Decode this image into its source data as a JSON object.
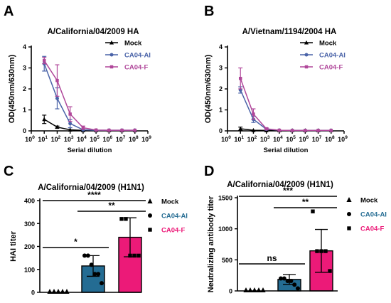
{
  "chart_data": [
    {
      "id": "A",
      "panel_label": "A",
      "type": "line",
      "title": "A/California/04/2009 HA",
      "xlabel": "Serial dilution",
      "ylabel": "OD(450nm/630nm)",
      "xscale": "log",
      "xlim": [
        1,
        1000000000
      ],
      "ylim": [
        0,
        4
      ],
      "yticks": [
        0,
        1,
        2,
        3,
        4
      ],
      "xticks": [
        "10^0",
        "10^1",
        "10^2",
        "10^3",
        "10^4",
        "10^5",
        "10^6",
        "10^7",
        "10^8",
        "10^9"
      ],
      "x": [
        10,
        100,
        1000,
        10000,
        100000,
        1000000,
        10000000,
        100000000
      ],
      "legend_position": "top-right",
      "series": [
        {
          "name": "Mock",
          "color": "#000000",
          "marker": "triangle",
          "values": [
            0.55,
            0.18,
            0.05,
            0.02,
            0.02,
            0.02,
            0.02,
            0.02
          ],
          "errors": [
            0.2,
            0.05,
            0.02,
            0.01,
            0.01,
            0.01,
            0.01,
            0.01
          ]
        },
        {
          "name": "CA04-AI",
          "color": "#4a63a8",
          "marker": "circle",
          "values": [
            3.2,
            1.55,
            0.35,
            0.05,
            0.03,
            0.03,
            0.03,
            0.03
          ],
          "errors": [
            0.35,
            0.5,
            0.2,
            0.02,
            0.01,
            0.01,
            0.01,
            0.01
          ]
        },
        {
          "name": "CA04-F",
          "color": "#b0479a",
          "marker": "square",
          "values": [
            3.35,
            2.4,
            0.8,
            0.15,
            0.04,
            0.03,
            0.03,
            0.03
          ],
          "errors": [
            0.15,
            0.75,
            0.35,
            0.08,
            0.02,
            0.01,
            0.01,
            0.01
          ]
        }
      ]
    },
    {
      "id": "B",
      "panel_label": "B",
      "type": "line",
      "title": "A/Vietnam/1194/2004 HA",
      "xlabel": "Serial dilution",
      "ylabel": "OD(450nm/630nm)",
      "xscale": "log",
      "xlim": [
        1,
        1000000000
      ],
      "ylim": [
        0,
        4
      ],
      "yticks": [
        0,
        1,
        2,
        3,
        4
      ],
      "xticks": [
        "10^0",
        "10^1",
        "10^2",
        "10^3",
        "10^4",
        "10^5",
        "10^6",
        "10^7",
        "10^8",
        "10^9"
      ],
      "x": [
        10,
        100,
        1000,
        10000,
        100000,
        1000000,
        10000000,
        100000000
      ],
      "legend_position": "top-right",
      "series": [
        {
          "name": "Mock",
          "color": "#000000",
          "marker": "triangle",
          "values": [
            0.1,
            0.03,
            0.02,
            0.02,
            0.02,
            0.02,
            0.02,
            0.02
          ],
          "errors": [
            0.08,
            0.02,
            0.01,
            0.01,
            0.01,
            0.01,
            0.01,
            0.01
          ]
        },
        {
          "name": "CA04-AI",
          "color": "#4a63a8",
          "marker": "circle",
          "values": [
            1.95,
            0.55,
            0.08,
            0.03,
            0.02,
            0.02,
            0.02,
            0.02
          ],
          "errors": [
            0.15,
            0.15,
            0.04,
            0.01,
            0.01,
            0.01,
            0.01,
            0.01
          ]
        },
        {
          "name": "CA04-F",
          "color": "#b0479a",
          "marker": "square",
          "values": [
            2.5,
            0.8,
            0.1,
            0.03,
            0.02,
            0.02,
            0.02,
            0.02
          ],
          "errors": [
            0.5,
            0.25,
            0.05,
            0.01,
            0.01,
            0.01,
            0.01,
            0.01
          ]
        }
      ]
    },
    {
      "id": "C",
      "panel_label": "C",
      "type": "bar",
      "title": "A/California/04/2009 (H1N1)",
      "ylabel": "HAI titer",
      "ylim": [
        0,
        400
      ],
      "yticks": [
        0,
        100,
        200,
        300,
        400
      ],
      "categories": [
        "Mock",
        "CA04-AI",
        "CA04-F"
      ],
      "bar_colors": [
        "#000000",
        "#246c93",
        "#ec1a78"
      ],
      "values": [
        0,
        115,
        240
      ],
      "errors": [
        0,
        45,
        85
      ],
      "points": [
        [
          0,
          0,
          0,
          0,
          0
        ],
        [
          160,
          160,
          120,
          80,
          80,
          40
        ],
        [
          320,
          320,
          160,
          160,
          160
        ]
      ],
      "legend": [
        {
          "name": "Mock",
          "marker": "triangle",
          "color": "#000000"
        },
        {
          "name": "CA04-AI",
          "marker": "circle",
          "color": "#246c93"
        },
        {
          "name": "CA04-F",
          "marker": "square",
          "color": "#ec1a78"
        }
      ],
      "legend_position": "right",
      "significance": [
        {
          "from": 0,
          "to": 1,
          "label": "*",
          "level": 1
        },
        {
          "from": 1,
          "to": 2,
          "label": "**",
          "level": 2
        },
        {
          "from": 0,
          "to": 2,
          "label": "****",
          "level": 3
        }
      ]
    },
    {
      "id": "D",
      "panel_label": "D",
      "type": "bar",
      "title": "A/California/04/2009 (H1N1)",
      "ylabel": "Neutralizing antibody titer",
      "ylim": [
        0,
        1500
      ],
      "yticks": [
        0,
        500,
        1000,
        1500
      ],
      "categories": [
        "Mock",
        "CA04-AI",
        "CA04-F"
      ],
      "bar_colors": [
        "#000000",
        "#246c93",
        "#ec1a78"
      ],
      "values": [
        0,
        185,
        645
      ],
      "errors": [
        0,
        80,
        345
      ],
      "points": [
        [
          0,
          0,
          0,
          0,
          0
        ],
        [
          200,
          200,
          160,
          160,
          100,
          40
        ],
        [
          1280,
          640,
          640,
          640,
          320
        ]
      ],
      "legend": [
        {
          "name": "Mock",
          "marker": "triangle",
          "color": "#000000"
        },
        {
          "name": "CA04-AI",
          "marker": "circle",
          "color": "#246c93"
        },
        {
          "name": "CA04-F",
          "marker": "square",
          "color": "#ec1a78"
        }
      ],
      "legend_position": "right",
      "significance": [
        {
          "from": 0,
          "to": 1,
          "label": "ns",
          "level": 1
        },
        {
          "from": 1,
          "to": 2,
          "label": "**",
          "level": 2
        },
        {
          "from": 0,
          "to": 2,
          "label": "***",
          "level": 3
        }
      ]
    }
  ]
}
